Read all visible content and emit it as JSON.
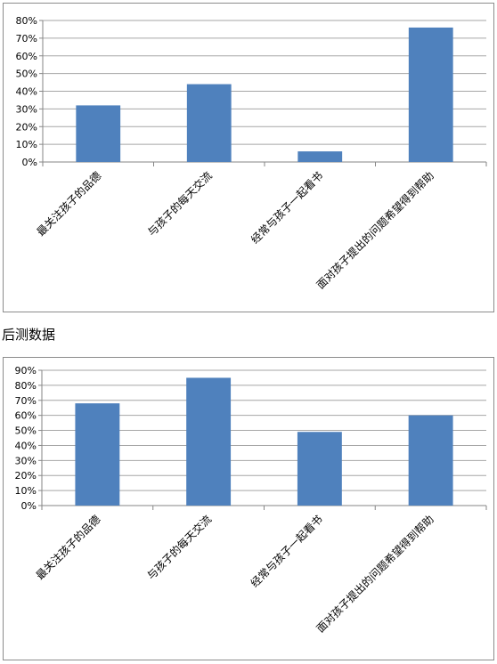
{
  "section_title": "后测数据",
  "colors": {
    "bar": "#4f81bd",
    "grid": "#a6a6a6",
    "axis": "#868686",
    "frame": "#8c8c8c"
  },
  "chart_data": [
    {
      "type": "bar",
      "categories": [
        "最关注孩子的品德",
        "与孩子的每天交流",
        "经常与孩子一起看书",
        "面对孩子提出的问题希望得到帮助"
      ],
      "values": [
        32,
        44,
        6,
        76
      ],
      "ylim": [
        0,
        80
      ],
      "yticks": [
        "0%",
        "10%",
        "20%",
        "30%",
        "40%",
        "50%",
        "60%",
        "70%",
        "80%"
      ],
      "grid": true,
      "legend": "none"
    },
    {
      "type": "bar",
      "categories": [
        "最关注孩子的品德",
        "与孩子的每天交流",
        "经常与孩子一起看书",
        "面对孩子提出的问题希望得到帮助"
      ],
      "values": [
        68,
        85,
        49,
        60
      ],
      "ylim": [
        0,
        90
      ],
      "yticks": [
        "0%",
        "10%",
        "20%",
        "30%",
        "40%",
        "50%",
        "60%",
        "70%",
        "80%",
        "90%"
      ],
      "grid": true,
      "legend": "none"
    }
  ]
}
